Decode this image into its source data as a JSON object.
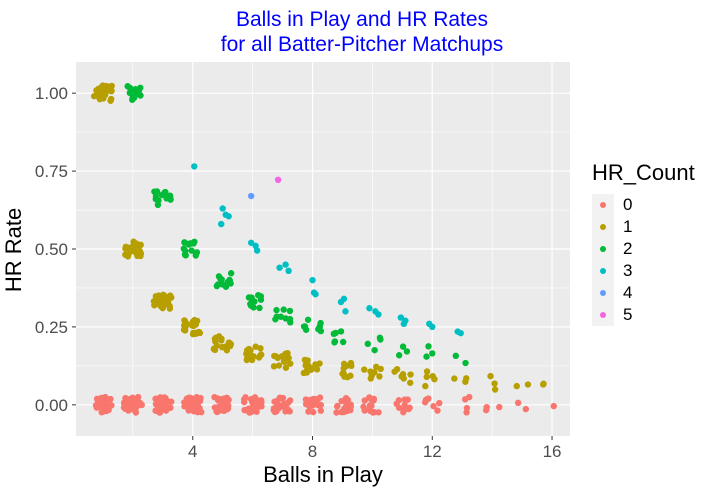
{
  "chart_data": {
    "type": "scatter",
    "title": "Balls in Play and HR Rates\nfor all Batter-Pitcher Matchups",
    "title_lines": [
      "Balls in Play and HR Rates",
      "for all Batter-Pitcher Matchups"
    ],
    "xlabel": "Balls in Play",
    "ylabel": "HR Rate",
    "xlim": [
      0.1,
      16.6
    ],
    "ylim": [
      -0.1,
      1.1
    ],
    "xticks": [
      4,
      8,
      12,
      16
    ],
    "xtick_labels": [
      "4",
      "8",
      "12",
      "16"
    ],
    "yticks": [
      0,
      0.25,
      0.5,
      0.75,
      1.0
    ],
    "ytick_labels": [
      "0.00",
      "0.25",
      "0.50",
      "0.75",
      "1.00"
    ],
    "grid": true,
    "legend_position": "right",
    "legend": {
      "title": "HR_Count",
      "entries": [
        "0",
        "1",
        "2",
        "3",
        "4",
        "5"
      ],
      "colors": [
        "#F8766D",
        "#B79F00",
        "#00BA38",
        "#00BFC4",
        "#619CFF",
        "#F564E3"
      ]
    },
    "jitter_note_free": true,
    "clusters": [
      {
        "hr": 0,
        "x": [
          1,
          2,
          3,
          4,
          5,
          6,
          7,
          8,
          9,
          10,
          11,
          12,
          13,
          14,
          15,
          16
        ],
        "density": [
          30,
          30,
          30,
          30,
          30,
          28,
          26,
          22,
          18,
          14,
          10,
          7,
          4,
          3,
          2,
          1
        ],
        "rate_fn": "zero"
      },
      {
        "hr": 1,
        "x": [
          1,
          2,
          3,
          4,
          5,
          6,
          7,
          8,
          9,
          10,
          11,
          12,
          13,
          14,
          15,
          16
        ],
        "density": [
          30,
          28,
          24,
          22,
          18,
          16,
          14,
          12,
          10,
          8,
          7,
          5,
          3,
          3,
          2,
          2
        ],
        "rate_fn": "one_over_n"
      },
      {
        "hr": 2,
        "x": [
          2,
          3,
          4,
          5,
          6,
          7,
          8,
          9,
          10,
          11,
          12,
          13
        ],
        "density": [
          16,
          14,
          14,
          12,
          12,
          9,
          8,
          6,
          4,
          3,
          3,
          2
        ],
        "rate_fn": "two_over_n"
      }
    ],
    "series": [
      {
        "name": "3",
        "points": [
          [
            4.05,
            0.765
          ],
          [
            5,
            0.63
          ],
          [
            5.1,
            0.61
          ],
          [
            5.2,
            0.605
          ],
          [
            4.95,
            0.58
          ],
          [
            5.95,
            0.52
          ],
          [
            6.1,
            0.51
          ],
          [
            6.15,
            0.495
          ],
          [
            6.9,
            0.44
          ],
          [
            7.1,
            0.45
          ],
          [
            7.2,
            0.43
          ],
          [
            8.0,
            0.4
          ],
          [
            8.05,
            0.36
          ],
          [
            8.1,
            0.355
          ],
          [
            8.95,
            0.33
          ],
          [
            9.05,
            0.34
          ],
          [
            9.1,
            0.3
          ],
          [
            9.9,
            0.31
          ],
          [
            10.1,
            0.3
          ],
          [
            10.2,
            0.29
          ],
          [
            10.95,
            0.28
          ],
          [
            11.05,
            0.26
          ],
          [
            11.1,
            0.27
          ],
          [
            11.9,
            0.26
          ],
          [
            12.0,
            0.25
          ],
          [
            12.85,
            0.235
          ],
          [
            12.95,
            0.23
          ]
        ]
      },
      {
        "name": "4",
        "points": [
          [
            5.95,
            0.67
          ]
        ]
      },
      {
        "name": "5",
        "points": [
          [
            6.85,
            0.722
          ]
        ]
      }
    ]
  }
}
